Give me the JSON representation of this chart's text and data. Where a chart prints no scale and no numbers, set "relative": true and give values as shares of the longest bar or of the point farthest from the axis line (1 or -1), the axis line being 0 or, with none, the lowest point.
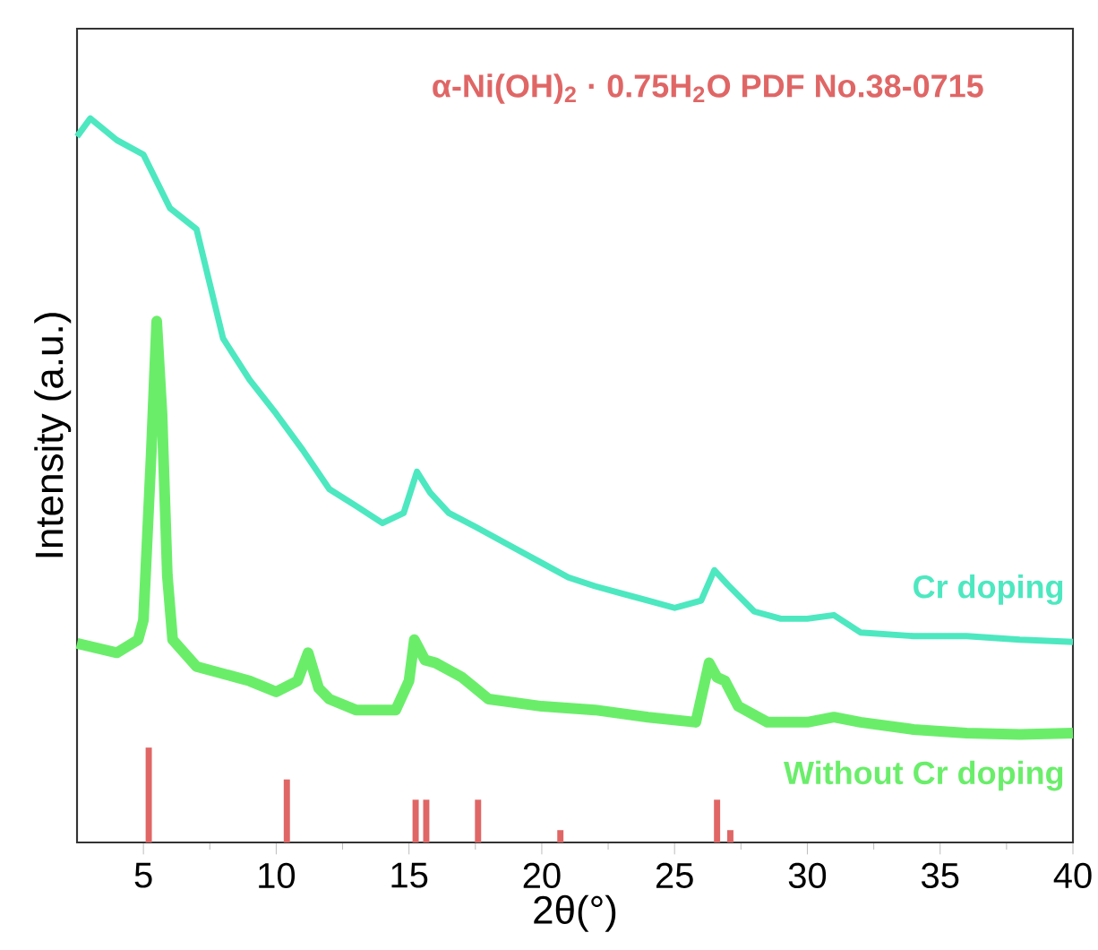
{
  "chart_data": {
    "type": "line",
    "relative": true,
    "xlabel": "2θ(°)",
    "ylabel": "Intensity (a.u.)",
    "xlim": [
      2.5,
      40
    ],
    "xticks": [
      5,
      10,
      15,
      20,
      25,
      30,
      35,
      40
    ],
    "series": [
      {
        "name": "Cr doping",
        "color": "#4de8c0",
        "x": [
          2.5,
          3,
          4,
          5,
          6,
          7,
          8,
          9,
          10,
          11,
          12,
          13,
          14,
          14.8,
          15.3,
          15.8,
          16.5,
          17.5,
          19,
          20,
          21,
          22,
          23,
          24,
          25,
          26,
          26.5,
          27,
          28,
          29,
          30,
          31,
          32,
          34,
          36,
          38,
          40
        ],
        "values": [
          0.975,
          1.0,
          0.97,
          0.95,
          0.876,
          0.847,
          0.696,
          0.639,
          0.592,
          0.542,
          0.488,
          0.465,
          0.441,
          0.455,
          0.512,
          0.483,
          0.455,
          0.436,
          0.406,
          0.386,
          0.366,
          0.354,
          0.344,
          0.334,
          0.324,
          0.334,
          0.376,
          0.356,
          0.319,
          0.309,
          0.309,
          0.314,
          0.29,
          0.285,
          0.285,
          0.28,
          0.277
        ]
      },
      {
        "name": "Without Cr doping",
        "color": "#6aee6a",
        "x": [
          2.5,
          4,
          4.8,
          5.0,
          5.3,
          5.5,
          5.7,
          5.9,
          6.1,
          7,
          8,
          9,
          10,
          10.8,
          11.2,
          11.6,
          12,
          13,
          14.5,
          15.0,
          15.2,
          15.6,
          16,
          17,
          18,
          19,
          20,
          22,
          24,
          25.8,
          26.3,
          26.6,
          26.9,
          27.4,
          28.5,
          30,
          31,
          32,
          34,
          36,
          38,
          40
        ],
        "values": [
          0.275,
          0.262,
          0.28,
          0.307,
          0.542,
          0.72,
          0.592,
          0.369,
          0.28,
          0.243,
          0.233,
          0.223,
          0.208,
          0.223,
          0.262,
          0.213,
          0.198,
          0.183,
          0.183,
          0.223,
          0.28,
          0.252,
          0.248,
          0.228,
          0.198,
          0.193,
          0.188,
          0.183,
          0.173,
          0.166,
          0.248,
          0.228,
          0.223,
          0.188,
          0.166,
          0.166,
          0.173,
          0.166,
          0.156,
          0.151,
          0.149,
          0.151
        ]
      },
      {
        "name": "α-Ni(OH)$_{2}$ · 0.75H$_{2}$O PDF No.38-0715",
        "type": "bar",
        "color": "#e06666",
        "x": [
          5.2,
          10.4,
          15.25,
          15.65,
          17.6,
          20.7,
          26.6,
          27.1
        ],
        "values": [
          0.131,
          0.087,
          0.059,
          0.059,
          0.059,
          0.017,
          0.059,
          0.017
        ]
      }
    ]
  }
}
